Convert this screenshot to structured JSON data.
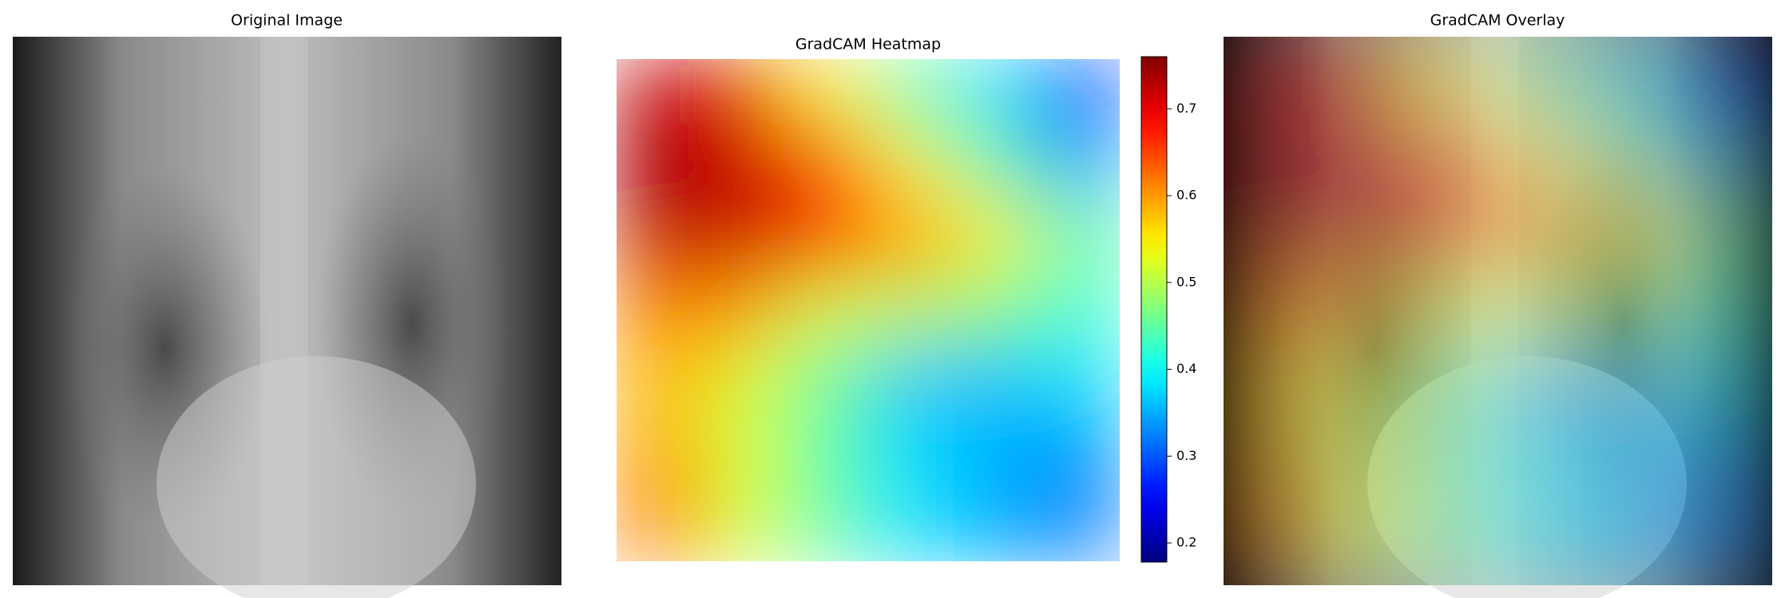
{
  "panels": [
    {
      "title": "Original Image"
    },
    {
      "title": "GradCAM Overlay"
    }
  ],
  "chart_data": {
    "type": "heatmap",
    "title": "GradCAM Heatmap",
    "values": [
      [
        0.72,
        0.7,
        0.55,
        0.45,
        0.38,
        0.25
      ],
      [
        0.74,
        0.72,
        0.65,
        0.55,
        0.45,
        0.35
      ],
      [
        0.72,
        0.72,
        0.68,
        0.6,
        0.55,
        0.45
      ],
      [
        0.62,
        0.6,
        0.52,
        0.5,
        0.47,
        0.42
      ],
      [
        0.58,
        0.52,
        0.45,
        0.36,
        0.36,
        0.38
      ],
      [
        0.6,
        0.52,
        0.45,
        0.38,
        0.35,
        0.33
      ],
      [
        0.62,
        0.52,
        0.45,
        0.38,
        0.35,
        0.32
      ]
    ],
    "colormap": "jet",
    "colorbar": {
      "lim": [
        0.178,
        0.76
      ],
      "ticks": [
        0.2,
        0.3,
        0.4,
        0.5,
        0.6,
        0.7
      ]
    }
  }
}
